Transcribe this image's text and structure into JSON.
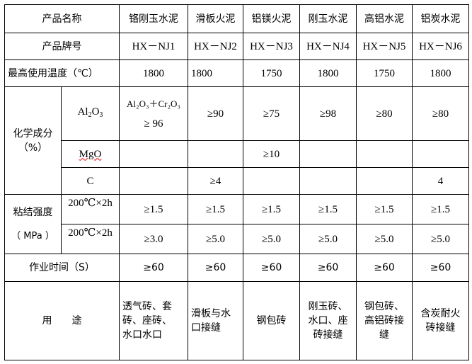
{
  "header": {
    "label": "产品名称",
    "products": [
      "铬刚玉水泥",
      "滑板火泥",
      "铝镁火泥",
      "刚玉水泥",
      "高铝水泥",
      "铝炭水泥"
    ]
  },
  "grade": {
    "label": "产品牌号",
    "values": [
      "HX－NJ1",
      "HX－NJ2",
      "HX－NJ3",
      "HX－NJ4",
      "HX－NJ5",
      "HX－NJ6"
    ]
  },
  "max_temp": {
    "label": "最高使用温度（℃）",
    "values": [
      "1800",
      "1800",
      "1750",
      "1800",
      "1750",
      "1800"
    ]
  },
  "chemistry": {
    "label": "化学成分\n（%）",
    "al2o3": {
      "label_main": "Al",
      "label_sub1": "2",
      "label_mid": "O",
      "label_sub2": "3",
      "nj1_line1": "Al₂O₃＋Cr₂O₃",
      "nj1_line2": "≥ 96",
      "values": [
        "≥90",
        "≥75",
        "≥98",
        "≥80",
        "≥80"
      ]
    },
    "mgo": {
      "label": "MgO",
      "values": [
        "",
        "",
        "≥10",
        "",
        "",
        ""
      ]
    },
    "c": {
      "label": "C",
      "values": [
        "",
        "≥4",
        "",
        "",
        "",
        "4"
      ]
    }
  },
  "bond_strength": {
    "label": "粘结强度",
    "unit": "（ MPa ）",
    "rows": [
      {
        "condition": "200℃×2h",
        "values": [
          "≥1.5",
          "≥1.5",
          "≥1.5",
          "≥1.5",
          "≥1.5",
          "≥1.5"
        ]
      },
      {
        "condition": "200℃×2h",
        "values": [
          "≥3.0",
          "≥5.0",
          "≥5.0",
          "≥5.0",
          "≥5.0",
          "≥5.0"
        ]
      }
    ]
  },
  "work_time": {
    "label": "作业时间（S）",
    "values": [
      "≥60",
      "≥60",
      "≥60",
      "≥60",
      "≥60",
      "≥60"
    ]
  },
  "usage": {
    "label": "用　　途",
    "values": [
      "透气砖、套\n砖、座砖、\n水口水口",
      "滑板与水\n口接缝",
      "钢包砖",
      "刚玉砖、\n水口、座\n砖接缝",
      "钢包砖、\n高铝砖接\n缝",
      "含炭耐火\n砖接缝"
    ]
  }
}
